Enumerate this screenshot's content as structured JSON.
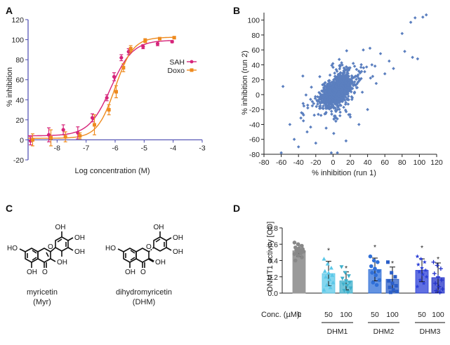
{
  "panels": {
    "a": "A",
    "b": "B",
    "c": "C",
    "d": "D"
  },
  "chart_data": [
    {
      "panel": "A",
      "type": "line",
      "xlabel": "Log concentration (M)",
      "ylabel": "% inhibition",
      "xlim": [
        -9,
        -3
      ],
      "ylim": [
        -20,
        120
      ],
      "xticks": [
        "-8",
        "-7",
        "-6",
        "-5",
        "-4",
        "-3"
      ],
      "yticks": [
        "-20",
        "0",
        "20",
        "40",
        "60",
        "80",
        "100",
        "120"
      ],
      "legend_position": "right",
      "series": [
        {
          "name": "SAH",
          "color": "#d6247a",
          "fit": {
            "bottom": 4,
            "top": 99.5,
            "logEC50": -6.15,
            "hill": 1.15
          },
          "x": [
            -8.88,
            -8.25,
            -7.75,
            -7.25,
            -6.75,
            -6.25,
            -6.0,
            -5.75,
            -5.5,
            -5.0,
            -4.5,
            -4.0
          ],
          "y": [
            -1,
            5,
            10,
            7,
            22,
            42,
            63,
            82,
            88,
            93,
            96,
            98
          ],
          "err": [
            4,
            7,
            5,
            6,
            4,
            3,
            4,
            3,
            3,
            2,
            2,
            1
          ]
        },
        {
          "name": "Doxo",
          "color": "#ee8a1e",
          "fit": {
            "bottom": 1.5,
            "top": 102.5,
            "logEC50": -6.0,
            "hill": 1.4
          },
          "x": [
            -8.88,
            -8.25,
            -7.75,
            -7.25,
            -6.75,
            -6.25,
            -6.0,
            -5.75,
            -5.5,
            -5.0,
            -4.5,
            -4.0
          ],
          "y": [
            0,
            2,
            3,
            4,
            15,
            30,
            48,
            72,
            91,
            99,
            101,
            102
          ],
          "err": [
            6,
            8,
            5,
            3,
            10,
            5,
            6,
            4,
            3,
            2,
            1,
            1
          ]
        }
      ]
    },
    {
      "panel": "B",
      "type": "scatter",
      "xlabel": "% inhibition (run 1)",
      "ylabel": "% inhibition (run 2)",
      "xlim": [
        -80,
        120
      ],
      "ylim": [
        -80,
        110
      ],
      "xticks": [
        "-80",
        "-60",
        "-40",
        "-20",
        "0",
        "20",
        "40",
        "60",
        "80",
        "100",
        "120"
      ],
      "yticks": [
        "-80",
        "-60",
        "-40",
        "-20",
        "0",
        "20",
        "40",
        "60",
        "80",
        "100"
      ],
      "color": "#5b7fbf",
      "cluster": {
        "center": [
          5,
          5
        ],
        "spread_x": 8,
        "spread_y": 8,
        "slope": 0.6
      },
      "notable_points": [
        {
          "x": 108,
          "y": 107
        },
        {
          "x": 104,
          "y": 104
        },
        {
          "x": 95,
          "y": 103
        },
        {
          "x": 90,
          "y": 97
        },
        {
          "x": 98,
          "y": 48
        },
        {
          "x": 92,
          "y": 50
        },
        {
          "x": 83,
          "y": 58
        },
        {
          "x": 80,
          "y": 82
        },
        {
          "x": 70,
          "y": 35
        },
        {
          "x": 60,
          "y": 28
        },
        {
          "x": 55,
          "y": 55
        },
        {
          "x": 45,
          "y": 40
        },
        {
          "x": -60,
          "y": -78
        },
        {
          "x": -58,
          "y": 11
        },
        {
          "x": -50,
          "y": -40
        },
        {
          "x": -45,
          "y": -60
        },
        {
          "x": -40,
          "y": -70
        },
        {
          "x": -20,
          "y": -65
        },
        {
          "x": 15,
          "y": -62
        },
        {
          "x": -2,
          "y": -78
        },
        {
          "x": 5,
          "y": -78
        },
        {
          "x": 30,
          "y": -40
        },
        {
          "x": 40,
          "y": -20
        },
        {
          "x": -35,
          "y": 25
        },
        {
          "x": -30,
          "y": -50
        },
        {
          "x": 20,
          "y": -30
        },
        {
          "x": 50,
          "y": 15
        },
        {
          "x": 65,
          "y": 45
        },
        {
          "x": 35,
          "y": 60
        },
        {
          "x": 25,
          "y": 38
        },
        {
          "x": -25,
          "y": 10
        }
      ]
    },
    {
      "panel": "D",
      "type": "bar",
      "ylabel": "DNMT1 activity [OD]",
      "xlabel_prefix": "Conc. (µM):",
      "ylim": [
        0,
        0.8
      ],
      "yticks": [
        "0.0",
        "0.2",
        "0.4",
        "0.6",
        "0.8"
      ],
      "groups": [
        {
          "name": "",
          "conc": [
            "0"
          ],
          "values": [
            0.52
          ],
          "err": [
            0.07
          ],
          "colors": [
            "#999999"
          ],
          "markers": [
            "circle"
          ],
          "sig": [
            ""
          ],
          "points": [
            [
              0.62,
              0.6,
              0.58,
              0.56,
              0.55,
              0.54,
              0.53,
              0.52,
              0.51,
              0.5,
              0.49,
              0.48,
              0.46,
              0.44,
              0.4
            ]
          ]
        },
        {
          "name": "DHM1",
          "conc": [
            "50",
            "100"
          ],
          "values": [
            0.24,
            0.15
          ],
          "err": [
            0.15,
            0.11
          ],
          "colors": [
            "#5bc8e8",
            "#3fb0cc"
          ],
          "markers": [
            "triangle",
            "triangle-down"
          ],
          "sig": [
            "*",
            "*"
          ],
          "points": [
            [
              0.42,
              0.36,
              0.31,
              0.27,
              0.25,
              0.22,
              0.2,
              0.17,
              0.13,
              0.1,
              0.07,
              0.04
            ],
            [
              0.32,
              0.25,
              0.21,
              0.18,
              0.15,
              0.13,
              0.11,
              0.09,
              0.06,
              0.03,
              0.01
            ]
          ]
        },
        {
          "name": "DHM2",
          "conc": [
            "50",
            "100"
          ],
          "values": [
            0.29,
            0.17
          ],
          "err": [
            0.14,
            0.15
          ],
          "colors": [
            "#2f6fd8",
            "#2a5ec8"
          ],
          "markers": [
            "circle",
            "square"
          ],
          "sig": [
            "*",
            "*"
          ],
          "points": [
            [
              0.45,
              0.4,
              0.38,
              0.33,
              0.3,
              0.27,
              0.25,
              0.22,
              0.16,
              0.13,
              0.1
            ],
            [
              0.38,
              0.25,
              0.2,
              0.15,
              0.12,
              0.09,
              0.07,
              0.04,
              0.02,
              0.01
            ]
          ]
        },
        {
          "name": "DHM3",
          "conc": [
            "50",
            "100"
          ],
          "values": [
            0.28,
            0.19
          ],
          "err": [
            0.14,
            0.18
          ],
          "colors": [
            "#2b3fd8",
            "#2231c9"
          ],
          "markers": [
            "star",
            "plus"
          ],
          "sig": [
            "*",
            "*"
          ],
          "points": [
            [
              0.45,
              0.42,
              0.38,
              0.35,
              0.31,
              0.28,
              0.26,
              0.23,
              0.2,
              0.16,
              0.12,
              0.08
            ],
            [
              0.38,
              0.34,
              0.3,
              0.24,
              0.2,
              0.16,
              0.12,
              0.08,
              0.05,
              0.03,
              0.01
            ]
          ]
        }
      ]
    }
  ],
  "molecules": {
    "myricetin": {
      "name": "myricetin",
      "abbr": "(Myr)"
    },
    "dhm": {
      "name": "dihydromyricetin",
      "abbr": "(DHM)"
    },
    "atom_labels": {
      "oh": "OH",
      "ho": "HO",
      "o": "O"
    }
  }
}
